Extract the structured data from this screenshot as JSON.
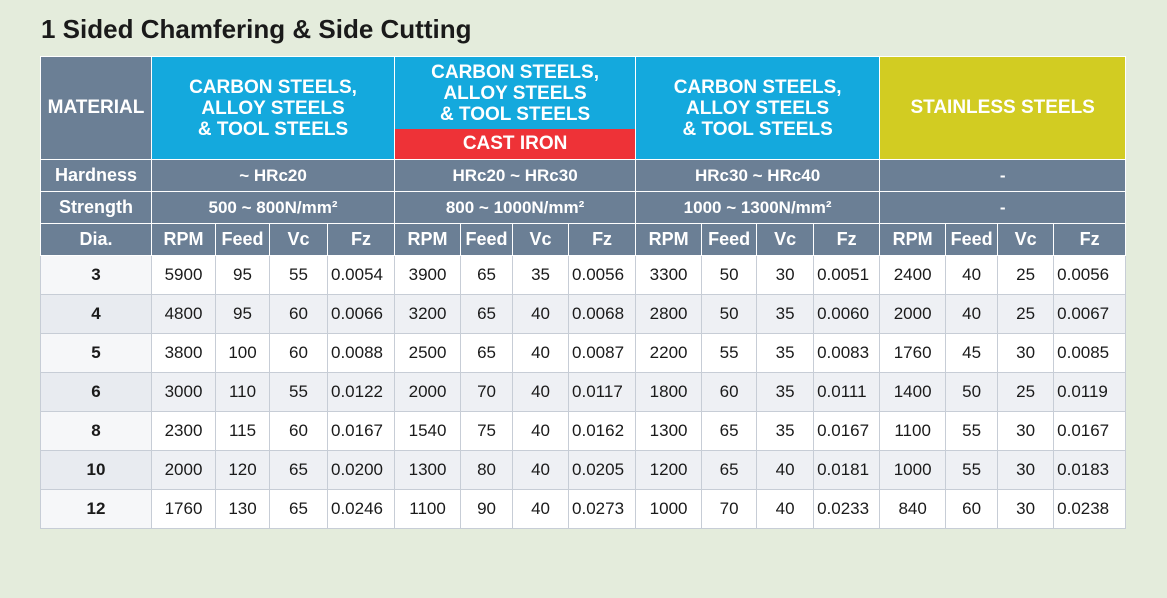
{
  "title": "1 Sided Chamfering & Side Cutting",
  "header": {
    "material_label": "MATERIAL",
    "groups": [
      {
        "line1": "CARBON STEELS,",
        "line2": "ALLOY STEELS",
        "line3": "& TOOL STEELS",
        "color": "#14a9dd"
      },
      {
        "line1": "CARBON STEELS,",
        "line2": "ALLOY STEELS",
        "line3": "& TOOL STEELS",
        "sub": "CAST IRON",
        "color": "#14a9dd",
        "sub_color": "#ee3237"
      },
      {
        "line1": "CARBON STEELS,",
        "line2": "ALLOY STEELS",
        "line3": "& TOOL STEELS",
        "color": "#14a9dd"
      },
      {
        "line1": "STAINLESS STEELS",
        "color": "#d2cc22"
      }
    ]
  },
  "hardness": {
    "label": "Hardness",
    "values": [
      "~ HRc20",
      "HRc20 ~ HRc30",
      "HRc30 ~ HRc40",
      "-"
    ]
  },
  "strength": {
    "label": "Strength",
    "values": [
      "500 ~ 800N/mm²",
      "800 ~ 1000N/mm²",
      "1000 ~ 1300N/mm²",
      "-"
    ]
  },
  "columns": {
    "dia": "Dia.",
    "rpm": "RPM",
    "feed": "Feed",
    "vc": "Vc",
    "fz": "Fz"
  },
  "rows": [
    {
      "dia": "3",
      "v": [
        "5900",
        "95",
        "55",
        "0.0054",
        "3900",
        "65",
        "35",
        "0.0056",
        "3300",
        "50",
        "30",
        "0.0051",
        "2400",
        "40",
        "25",
        "0.0056"
      ]
    },
    {
      "dia": "4",
      "v": [
        "4800",
        "95",
        "60",
        "0.0066",
        "3200",
        "65",
        "40",
        "0.0068",
        "2800",
        "50",
        "35",
        "0.0060",
        "2000",
        "40",
        "25",
        "0.0067"
      ]
    },
    {
      "dia": "5",
      "v": [
        "3800",
        "100",
        "60",
        "0.0088",
        "2500",
        "65",
        "40",
        "0.0087",
        "2200",
        "55",
        "35",
        "0.0083",
        "1760",
        "45",
        "30",
        "0.0085"
      ]
    },
    {
      "dia": "6",
      "v": [
        "3000",
        "110",
        "55",
        "0.0122",
        "2000",
        "70",
        "40",
        "0.0117",
        "1800",
        "60",
        "35",
        "0.0111",
        "1400",
        "50",
        "25",
        "0.0119"
      ]
    },
    {
      "dia": "8",
      "v": [
        "2300",
        "115",
        "60",
        "0.0167",
        "1540",
        "75",
        "40",
        "0.0162",
        "1300",
        "65",
        "35",
        "0.0167",
        "1100",
        "55",
        "30",
        "0.0167"
      ]
    },
    {
      "dia": "10",
      "v": [
        "2000",
        "120",
        "65",
        "0.0200",
        "1300",
        "80",
        "40",
        "0.0205",
        "1200",
        "65",
        "40",
        "0.0181",
        "1000",
        "55",
        "30",
        "0.0183"
      ]
    },
    {
      "dia": "12",
      "v": [
        "1760",
        "130",
        "65",
        "0.0246",
        "1100",
        "90",
        "40",
        "0.0273",
        "1000",
        "70",
        "40",
        "0.0233",
        "840",
        "60",
        "30",
        "0.0238"
      ]
    }
  ]
}
